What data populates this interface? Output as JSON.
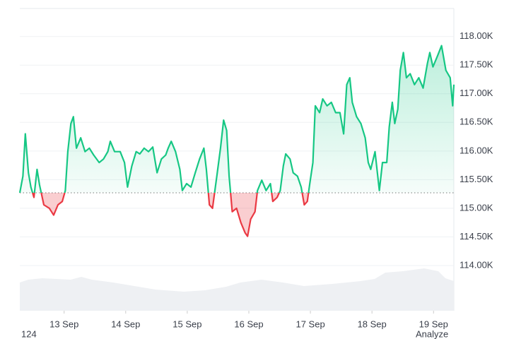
{
  "chart_data": {
    "type": "line",
    "x": [
      12.28,
      12.33,
      12.37,
      12.42,
      12.46,
      12.51,
      12.56,
      12.6,
      12.67,
      12.76,
      12.83,
      12.9,
      12.97,
      13.02,
      13.06,
      13.11,
      13.15,
      13.2,
      13.27,
      13.34,
      13.41,
      13.48,
      13.57,
      13.64,
      13.71,
      13.75,
      13.82,
      13.91,
      13.98,
      14.03,
      14.1,
      14.17,
      14.23,
      14.3,
      14.37,
      14.44,
      14.51,
      14.58,
      14.65,
      14.69,
      14.74,
      14.81,
      14.88,
      14.92,
      14.99,
      15.06,
      15.13,
      15.2,
      15.27,
      15.31,
      15.36,
      15.41,
      15.48,
      15.54,
      15.59,
      15.64,
      15.68,
      15.73,
      15.8,
      15.87,
      15.94,
      15.98,
      16.03,
      16.1,
      16.14,
      16.21,
      16.28,
      16.35,
      16.39,
      16.46,
      16.51,
      16.56,
      16.6,
      16.67,
      16.72,
      16.79,
      16.85,
      16.9,
      16.95,
      16.99,
      17.04,
      17.08,
      17.15,
      17.2,
      17.27,
      17.34,
      17.41,
      17.48,
      17.54,
      17.59,
      17.64,
      17.68,
      17.75,
      17.82,
      17.89,
      17.94,
      17.98,
      18.05,
      18.12,
      18.17,
      18.24,
      18.28,
      18.33,
      18.37,
      18.42,
      18.46,
      18.51,
      18.56,
      18.62,
      18.69,
      18.76,
      18.83,
      18.9,
      18.94,
      18.99,
      19.06,
      19.13,
      19.2,
      19.27,
      19.31,
      19.33
    ],
    "values": [
      115.27,
      115.56,
      116.3,
      115.62,
      115.37,
      115.19,
      115.68,
      115.41,
      115.06,
      115.0,
      114.88,
      115.06,
      115.12,
      115.31,
      115.99,
      116.48,
      116.6,
      116.05,
      116.23,
      115.99,
      116.05,
      115.93,
      115.8,
      115.86,
      115.99,
      116.17,
      115.99,
      115.99,
      115.8,
      115.37,
      115.74,
      115.99,
      115.95,
      116.05,
      115.99,
      116.07,
      115.62,
      115.86,
      115.93,
      116.05,
      116.17,
      115.99,
      115.68,
      115.31,
      115.43,
      115.37,
      115.62,
      115.86,
      116.05,
      115.68,
      115.06,
      115.0,
      115.56,
      116.05,
      116.54,
      116.36,
      115.56,
      114.94,
      115.0,
      114.75,
      114.57,
      114.51,
      114.81,
      114.94,
      115.31,
      115.49,
      115.31,
      115.43,
      115.12,
      115.19,
      115.31,
      115.74,
      115.95,
      115.86,
      115.62,
      115.56,
      115.37,
      115.06,
      115.12,
      115.43,
      115.8,
      116.79,
      116.67,
      116.91,
      116.79,
      116.85,
      116.67,
      116.67,
      116.3,
      117.16,
      117.28,
      116.85,
      116.6,
      116.48,
      116.23,
      115.8,
      115.68,
      115.99,
      115.31,
      115.8,
      115.8,
      116.42,
      116.85,
      116.48,
      116.73,
      117.41,
      117.72,
      117.28,
      117.35,
      117.16,
      117.28,
      117.1,
      117.53,
      117.72,
      117.47,
      117.65,
      117.84,
      117.41,
      117.28,
      116.79,
      117.16
    ],
    "baseline": 115.27,
    "up_color": "#16c784",
    "down_color": "#ea3943",
    "xlim": [
      12.28,
      19.33
    ],
    "xticks": [
      {
        "value": 13,
        "label": "13 Sep"
      },
      {
        "value": 14,
        "label": "14 Sep"
      },
      {
        "value": 15,
        "label": "15 Sep"
      },
      {
        "value": 16,
        "label": "16 Sep"
      },
      {
        "value": 17,
        "label": "17 Sep"
      },
      {
        "value": 18,
        "label": "18 Sep"
      },
      {
        "value": 19,
        "label": "19 Sep"
      }
    ],
    "ylim": [
      113.21,
      118.49
    ],
    "yticks": [
      {
        "value": 114,
        "label": "114.00K"
      },
      {
        "value": 114.5,
        "label": "114.50K"
      },
      {
        "value": 115,
        "label": "115.00K"
      },
      {
        "value": 115.5,
        "label": "115.50K"
      },
      {
        "value": 116,
        "label": "116.00K"
      },
      {
        "value": 116.5,
        "label": "116.50K"
      },
      {
        "value": 117,
        "label": "117.00K"
      },
      {
        "value": 117.5,
        "label": "117.50K"
      },
      {
        "value": 118,
        "label": "118.00K"
      }
    ],
    "grid": true
  },
  "footer": {
    "left": "124",
    "right": "Analyze"
  }
}
